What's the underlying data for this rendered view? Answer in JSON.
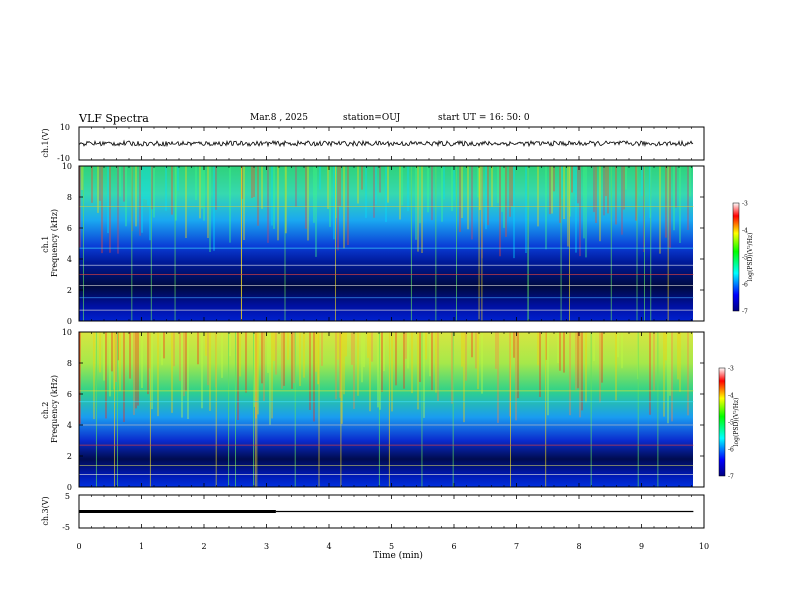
{
  "header": {
    "title": "VLF Spectra",
    "date": "Mar.8 , 2025",
    "station": "station=OUJ",
    "start": "start UT = 16: 50: 0"
  },
  "colors": {
    "trace": "#000000",
    "background": "#ffffff"
  },
  "chart_data": [
    {
      "type": "line",
      "panel": "ch1-waveform",
      "ylabel": "ch.1(V)",
      "ylim": [
        -10,
        10
      ],
      "y_ticks": [
        "10",
        "-10"
      ],
      "x_range_min": [
        0,
        9.83
      ],
      "approx_level": 0
    },
    {
      "type": "heatmap",
      "panel": "ch1-spectrogram",
      "ylabel": "ch.1\nFrequency (kHz)",
      "ylabel_lines": [
        "ch.1",
        "Frequency (kHz)"
      ],
      "ylim": [
        0,
        10
      ],
      "y_ticks": [
        "0",
        "2",
        "4",
        "6",
        "8",
        "10"
      ],
      "x_range_min": [
        0,
        9.83
      ],
      "colorbar": {
        "label": "log(PSD)(V²/Hz)",
        "range": [
          -7,
          -3
        ],
        "ticks": [
          "-3",
          "-4",
          "-5",
          "-6",
          "-7"
        ]
      }
    },
    {
      "type": "heatmap",
      "panel": "ch2-spectrogram",
      "ylabel": "ch.2\nFrequency (kHz)",
      "ylabel_lines": [
        "ch.2",
        "Frequency (kHz)"
      ],
      "ylim": [
        0,
        10
      ],
      "y_ticks": [
        "0",
        "2",
        "4",
        "6",
        "8",
        "10"
      ],
      "x_range_min": [
        0,
        9.83
      ],
      "colorbar": {
        "label": "log(PSD)(V²/Hz)",
        "range": [
          -7,
          -3
        ],
        "ticks": [
          "-3",
          "-4",
          "-5",
          "-6",
          "-7"
        ]
      }
    },
    {
      "type": "line",
      "panel": "ch3-waveform",
      "ylabel": "ch.3(V)",
      "ylim": [
        -5,
        5
      ],
      "y_ticks": [
        "5",
        "-5"
      ],
      "series": [
        {
          "x": [
            0,
            3.15
          ],
          "y": [
            0,
            0
          ]
        },
        {
          "x": [
            3.15,
            9.83
          ],
          "y": [
            0,
            0
          ]
        }
      ],
      "xlabel": "Time (min)",
      "xlim": [
        0,
        10
      ],
      "x_ticks": [
        "0",
        "1",
        "2",
        "3",
        "4",
        "5",
        "6",
        "7",
        "8",
        "9",
        "10"
      ]
    }
  ]
}
